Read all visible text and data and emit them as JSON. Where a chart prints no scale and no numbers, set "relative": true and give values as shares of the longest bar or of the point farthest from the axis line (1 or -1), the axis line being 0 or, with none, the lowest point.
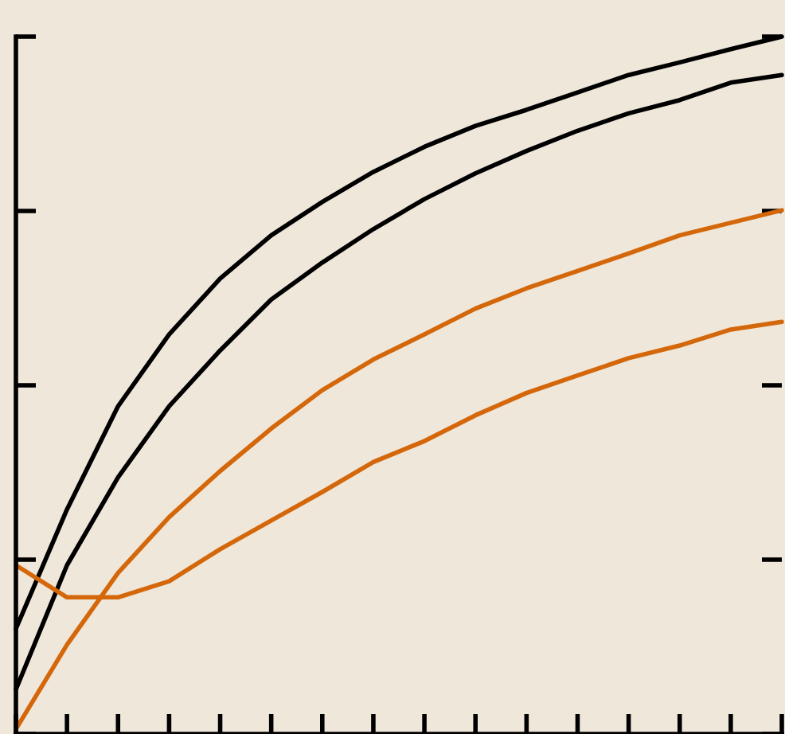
{
  "chart_data": {
    "type": "line",
    "relative": true,
    "grid": false,
    "legend": false,
    "marker": "none",
    "line_style": "solid",
    "categories": [
      null,
      null,
      null,
      null,
      null,
      null,
      null,
      null,
      null,
      null,
      null,
      null,
      null,
      null,
      null,
      null
    ],
    "series": [
      {
        "color": "#000000",
        "values": [
          0.151,
          0.322,
          0.47,
          0.573,
          0.653,
          0.715,
          0.763,
          0.806,
          0.842,
          0.872,
          0.895,
          0.92,
          0.945,
          0.963,
          0.982,
          1.0
        ]
      },
      {
        "color": "#000000",
        "values": [
          0.064,
          0.242,
          0.368,
          0.47,
          0.55,
          0.623,
          0.676,
          0.724,
          0.767,
          0.804,
          0.836,
          0.865,
          0.89,
          0.909,
          0.934,
          0.945
        ]
      },
      {
        "color": "#d4670a",
        "values": [
          0.007,
          0.128,
          0.231,
          0.311,
          0.377,
          0.438,
          0.493,
          0.537,
          0.573,
          0.61,
          0.639,
          0.664,
          0.689,
          0.715,
          0.733,
          0.751
        ]
      },
      {
        "color": "#d4670a",
        "values": [
          0.242,
          0.196,
          0.196,
          0.219,
          0.265,
          0.306,
          0.347,
          0.39,
          0.42,
          0.457,
          0.489,
          0.514,
          0.539,
          0.557,
          0.58,
          0.591
        ]
      }
    ]
  }
}
